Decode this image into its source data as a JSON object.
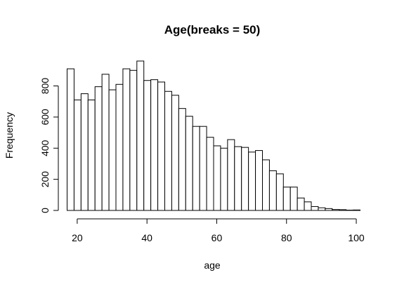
{
  "chart_data": {
    "type": "bar",
    "title": "Age(breaks = 50)",
    "xlabel": "age",
    "ylabel": "Frequency",
    "bin_width": 2,
    "bin_starts": [
      17,
      19,
      21,
      23,
      25,
      27,
      29,
      31,
      33,
      35,
      37,
      39,
      41,
      43,
      45,
      47,
      49,
      51,
      53,
      55,
      57,
      59,
      61,
      63,
      65,
      67,
      69,
      71,
      73,
      75,
      77,
      79,
      81,
      83,
      85,
      87,
      89,
      91,
      93,
      95,
      97,
      99
    ],
    "values": [
      910,
      710,
      750,
      710,
      795,
      875,
      775,
      810,
      910,
      900,
      960,
      835,
      840,
      825,
      765,
      740,
      655,
      605,
      540,
      540,
      470,
      415,
      400,
      455,
      410,
      405,
      375,
      385,
      325,
      255,
      235,
      150,
      150,
      80,
      55,
      25,
      17,
      12,
      6,
      5,
      2,
      3
    ],
    "xlim": [
      17,
      101
    ],
    "ylim": [
      0,
      960
    ],
    "x_ticks": [
      20,
      40,
      60,
      80,
      100
    ],
    "y_ticks": [
      0,
      200,
      400,
      600,
      800
    ],
    "grid": false
  }
}
